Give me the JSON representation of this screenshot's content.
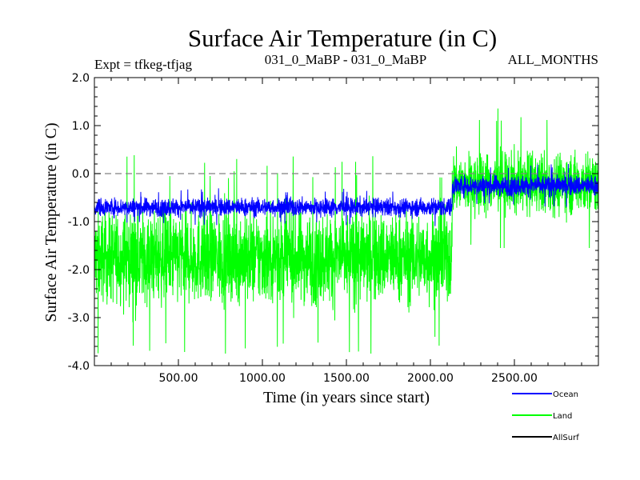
{
  "chart_data": {
    "type": "line",
    "title": "Surface Air Temperature (in C)",
    "header_left": "Expt = tfkeg-tfjag",
    "header_center": "031_0_MaBP - 031_0_MaBP",
    "header_right": "ALL_MONTHS",
    "xlabel": "Time (in years since start)",
    "ylabel": "Surface Air Temperature (in C)",
    "xlim": [
      0,
      3000
    ],
    "ylim": [
      -4.0,
      2.0
    ],
    "x_ticks": [
      500,
      1000,
      1500,
      2000,
      2500
    ],
    "x_tick_labels": [
      "500.00",
      "1000.00",
      "1500.00",
      "2000.00",
      "2500.00"
    ],
    "y_ticks": [
      -4.0,
      -3.0,
      -2.0,
      -1.0,
      0.0,
      1.0,
      2.0
    ],
    "y_tick_labels": [
      "-4.0",
      "-3.0",
      "-2.0",
      "-1.0",
      "0.0",
      "1.0",
      "2.0"
    ],
    "reference_line": {
      "y": 0.0,
      "style": "dashed",
      "color": "#808080"
    },
    "legend_position": "bottom-right, outside plot",
    "step_year": 2130,
    "series": [
      {
        "name": "Ocean",
        "color": "#0000ff",
        "segments": [
          {
            "x_range": [
              0,
              2130
            ],
            "mean": -0.7,
            "min": -1.1,
            "max": -0.3
          },
          {
            "x_range": [
              2130,
              3000
            ],
            "mean": -0.25,
            "min": -0.75,
            "max": 0.2
          }
        ]
      },
      {
        "name": "Land",
        "color": "#00ff00",
        "segments": [
          {
            "x_range": [
              0,
              2130
            ],
            "mean": -1.75,
            "min": -3.75,
            "max": 0.55
          },
          {
            "x_range": [
              2130,
              3000
            ],
            "mean": -0.2,
            "min": -1.55,
            "max": 1.7
          }
        ]
      },
      {
        "name": "AllSurf",
        "color": "#000000",
        "segments": []
      }
    ]
  }
}
